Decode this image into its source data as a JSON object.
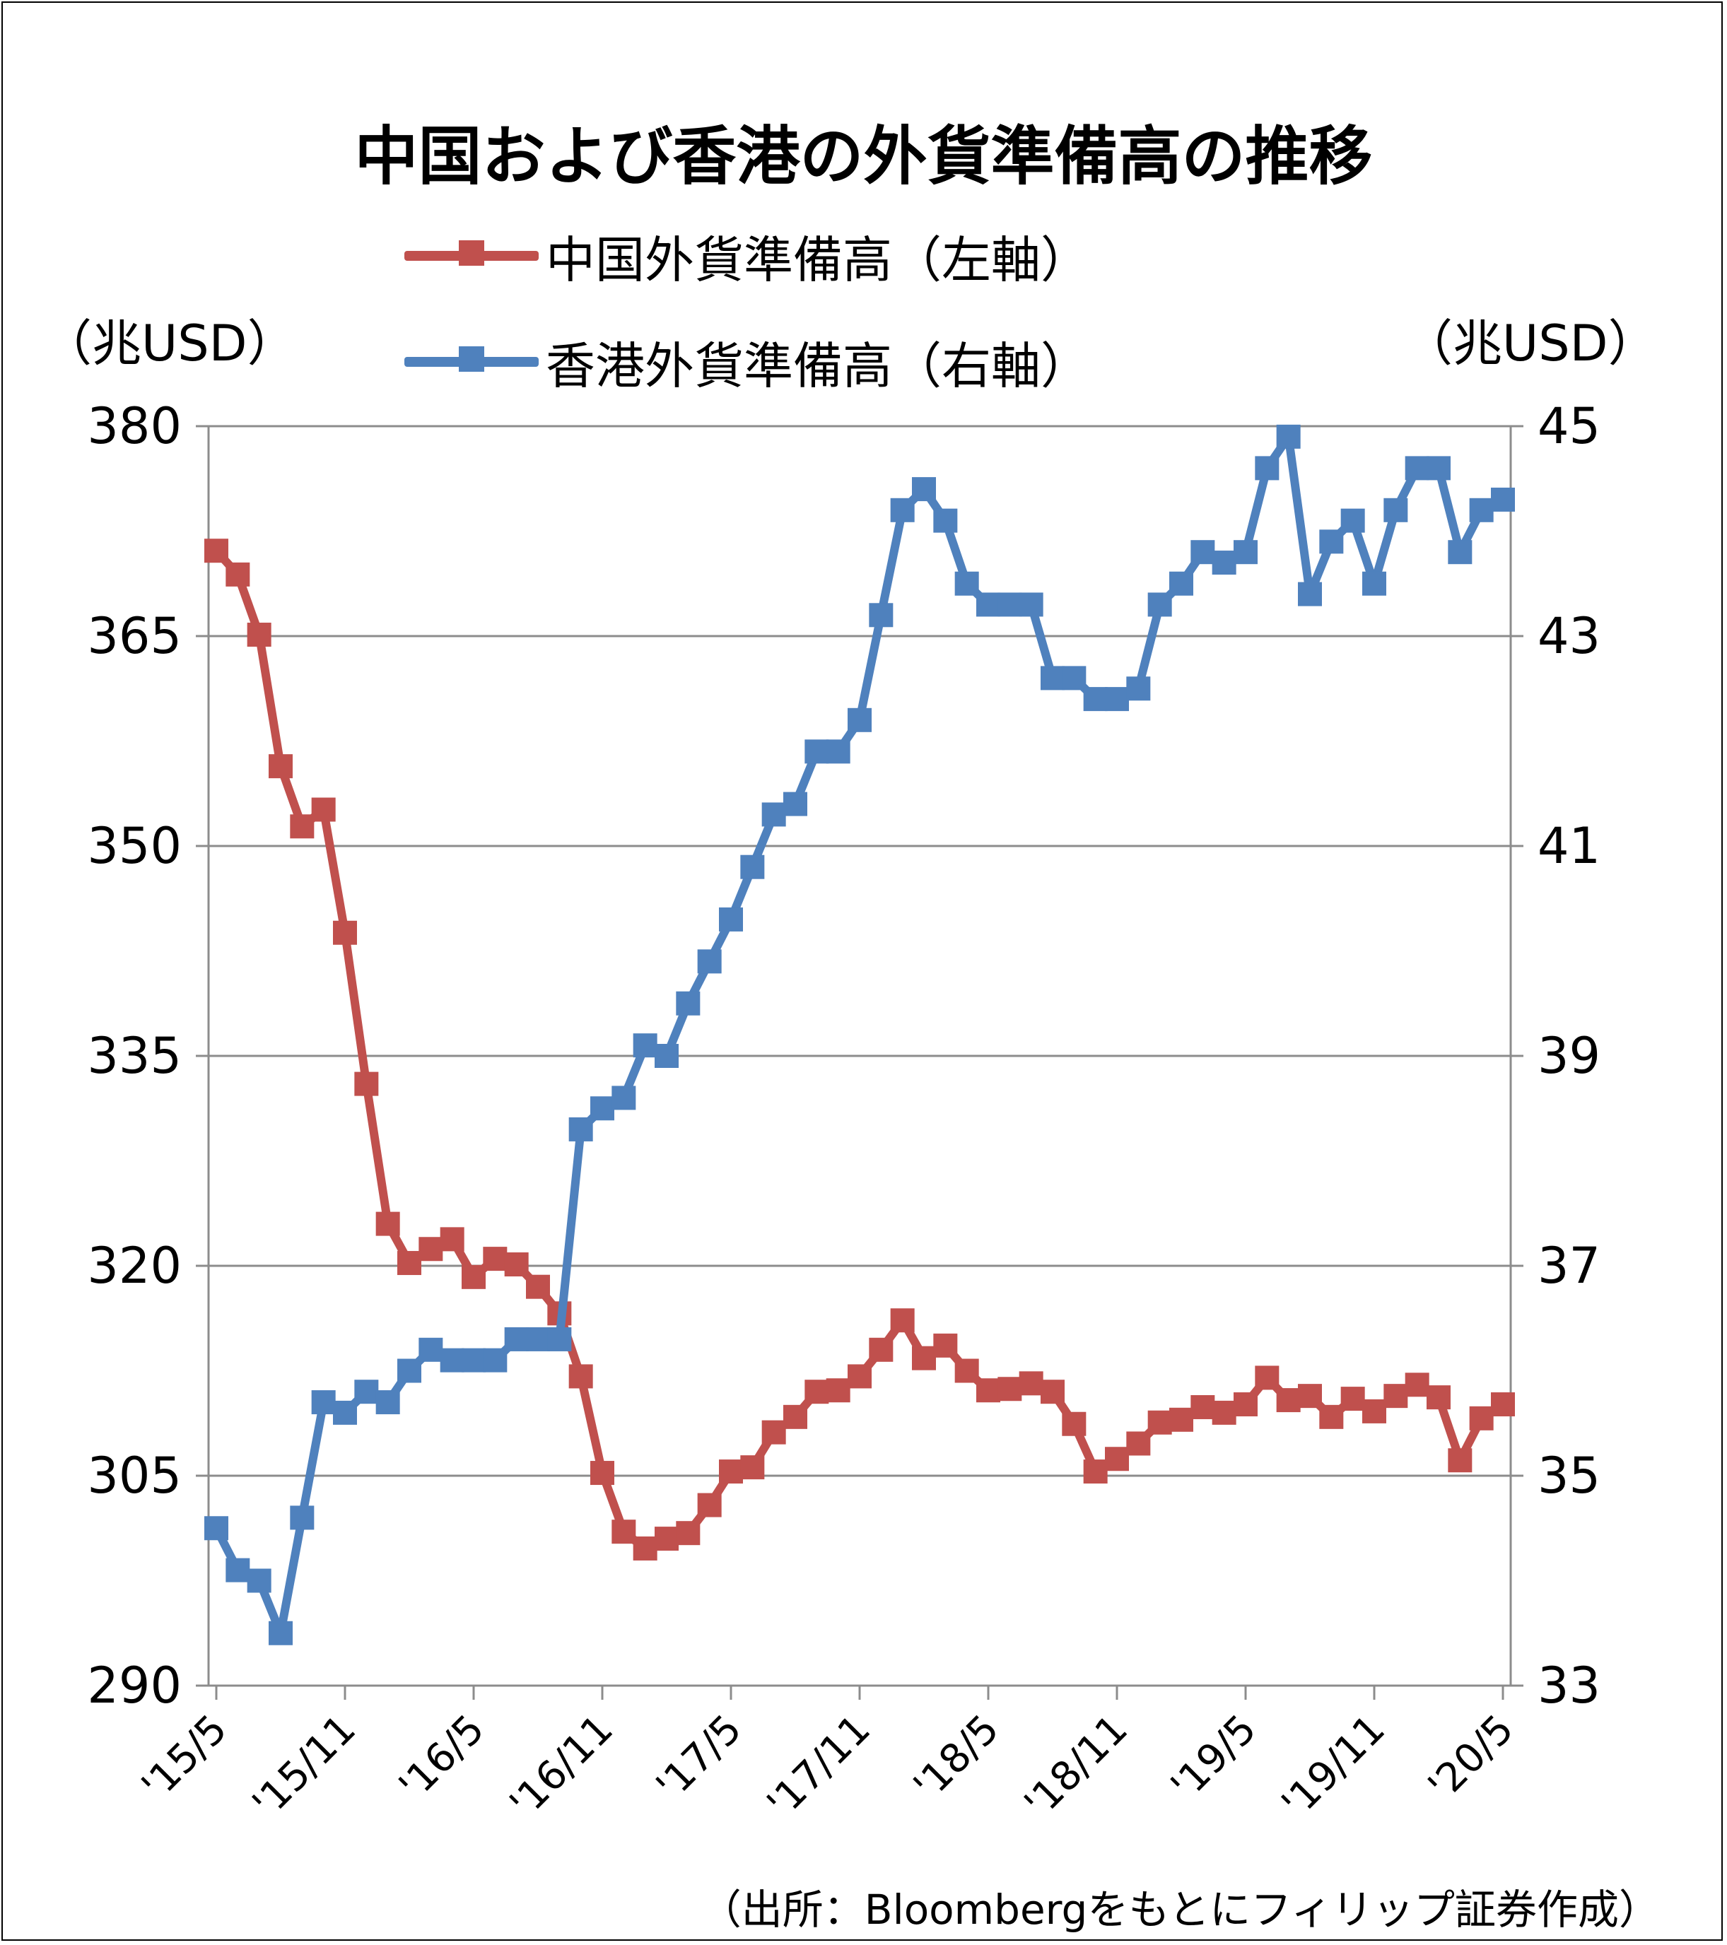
{
  "title": "中国および香港の外貨準備高の推移",
  "left_unit": "（兆USD）",
  "right_unit": "（兆USD）",
  "source": "（出所：Bloombergをもとにフィリップ証券作成）",
  "chart_data": {
    "type": "line",
    "title": "中国および香港の外貨準備高の推移",
    "x_ticks": [
      "'15/5",
      "'15/11",
      "'16/5",
      "'16/11",
      "'17/5",
      "'17/11",
      "'18/5",
      "'18/11",
      "'19/5",
      "'19/11",
      "'20/5"
    ],
    "left_axis": {
      "label": "（兆USD）",
      "range": [
        290,
        380
      ],
      "ticks": [
        "290",
        "305",
        "320",
        "335",
        "350",
        "365",
        "380"
      ]
    },
    "right_axis": {
      "label": "（兆USD）",
      "range": [
        33,
        45
      ],
      "ticks": [
        "33",
        "35",
        "37",
        "39",
        "41",
        "43",
        "45"
      ]
    },
    "grid": true,
    "legend_position": "top",
    "series": [
      {
        "name": "中国外貨準備高（左軸）",
        "axis": "left",
        "color": "#c0504d",
        "values": [
          371.1,
          369.4,
          365.1,
          355.7,
          351.4,
          352.6,
          343.8,
          333.0,
          323.0,
          320.2,
          321.2,
          321.9,
          319.2,
          320.5,
          320.1,
          318.5,
          316.6,
          312.1,
          305.2,
          301.0,
          299.8,
          300.5,
          300.9,
          302.9,
          305.3,
          305.6,
          308.1,
          309.2,
          311.0,
          311.1,
          312.1,
          314.0,
          316.1,
          313.4,
          314.3,
          312.5,
          311.1,
          311.2,
          311.6,
          311.0,
          308.7,
          305.3,
          306.2,
          307.3,
          308.8,
          309.0,
          309.9,
          309.5,
          310.1,
          312.0,
          310.4,
          310.7,
          309.2,
          310.5,
          309.6,
          310.7,
          311.5,
          310.6,
          306.1,
          309.1,
          310.1
        ]
      },
      {
        "name": "香港外貨準備高（右軸）",
        "axis": "right",
        "color": "#4f81bd",
        "values": [
          34.5,
          34.1,
          34.0,
          33.5,
          34.6,
          35.7,
          35.6,
          35.8,
          35.7,
          36.0,
          36.2,
          36.1,
          36.1,
          36.1,
          36.3,
          36.3,
          36.3,
          38.3,
          38.5,
          38.6,
          39.1,
          39.0,
          39.5,
          39.9,
          40.3,
          40.8,
          41.3,
          41.4,
          41.9,
          41.9,
          42.2,
          43.2,
          44.2,
          44.4,
          44.1,
          43.5,
          43.3,
          43.3,
          43.3,
          42.6,
          42.6,
          42.4,
          42.4,
          42.5,
          43.3,
          43.5,
          43.8,
          43.7,
          43.8,
          44.6,
          44.9,
          43.4,
          43.9,
          44.1,
          43.5,
          44.2,
          44.6,
          44.6,
          43.8,
          44.2,
          44.3
        ]
      }
    ]
  }
}
